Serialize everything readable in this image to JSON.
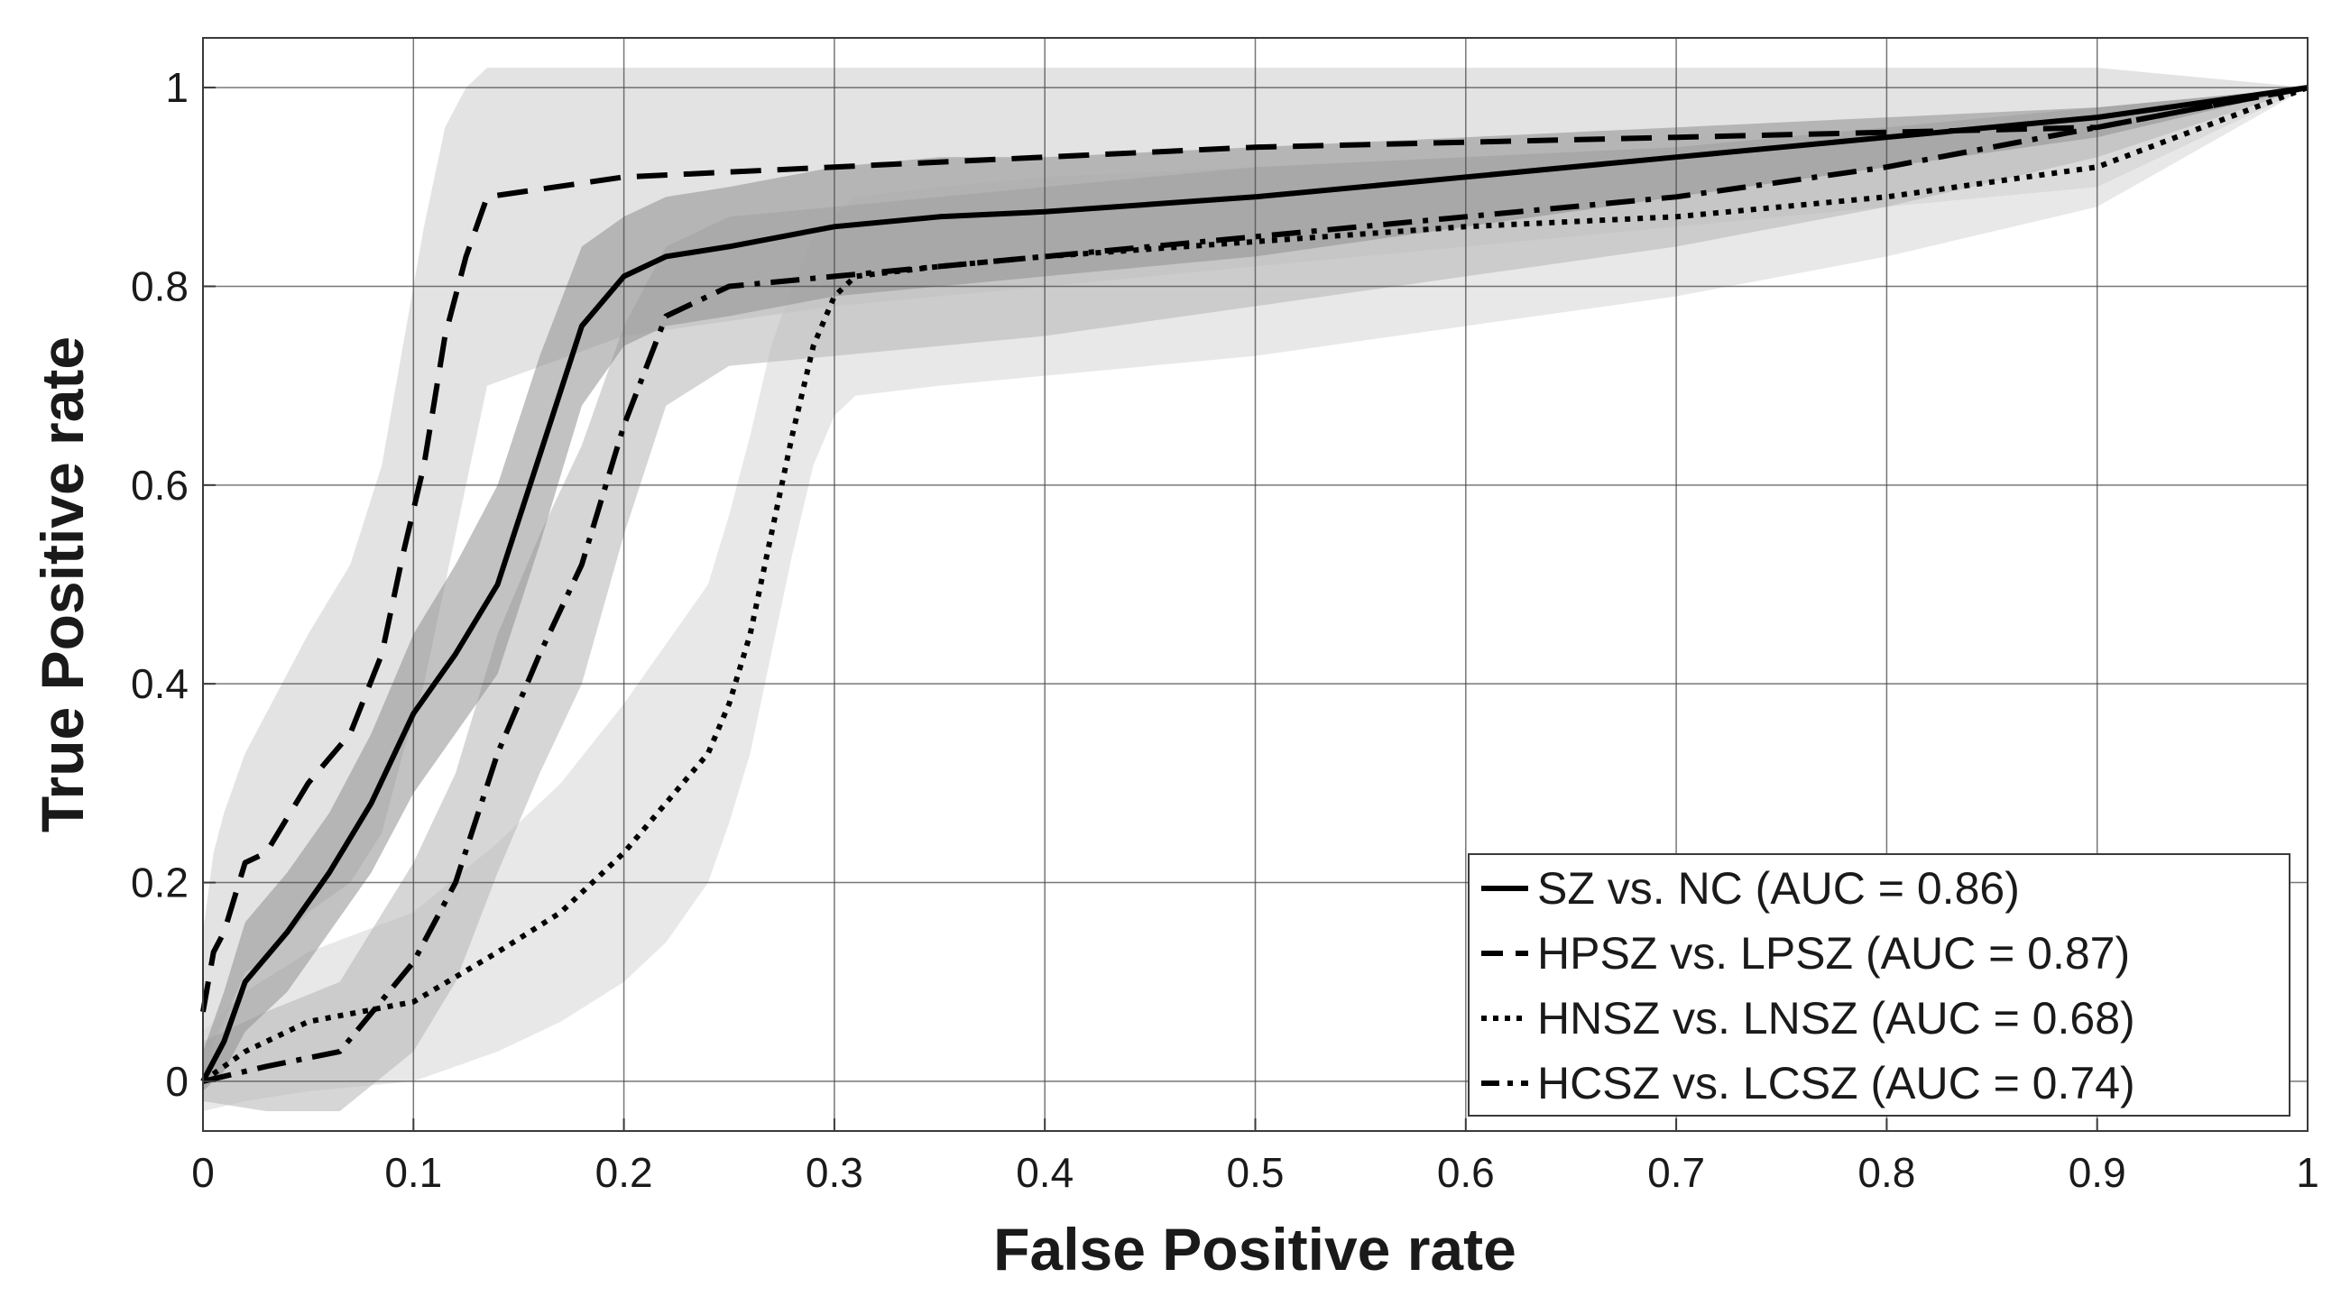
{
  "chart_data": {
    "type": "line",
    "xlabel": "False Positive rate",
    "ylabel": "True Positive rate",
    "xlim": [
      0,
      1
    ],
    "ylim": [
      -0.05,
      1.05
    ],
    "x_ticks": [
      0,
      0.1,
      0.2,
      0.3,
      0.4,
      0.5,
      0.6,
      0.7,
      0.8,
      0.9,
      1
    ],
    "x_tick_labels": [
      "0",
      "0.1",
      "0.2",
      "0.3",
      "0.4",
      "0.5",
      "0.6",
      "0.7",
      "0.8",
      "0.9",
      "1"
    ],
    "y_ticks": [
      0,
      0.2,
      0.4,
      0.6,
      0.8,
      1
    ],
    "y_tick_labels": [
      "0",
      "0.2",
      "0.4",
      "0.6",
      "0.8",
      "1"
    ],
    "grid": true,
    "legend_position": "bottom-right",
    "series": [
      {
        "name": "SZ vs. NC (AUC = 0.86)",
        "style": "solid",
        "color": "#000000",
        "x": [
          0,
          0.01,
          0.02,
          0.04,
          0.06,
          0.08,
          0.1,
          0.12,
          0.14,
          0.16,
          0.18,
          0.2,
          0.22,
          0.25,
          0.3,
          0.35,
          0.4,
          0.5,
          0.6,
          0.7,
          0.8,
          0.9,
          1.0
        ],
        "y": [
          0,
          0.04,
          0.1,
          0.15,
          0.21,
          0.28,
          0.37,
          0.43,
          0.5,
          0.63,
          0.76,
          0.81,
          0.83,
          0.84,
          0.86,
          0.87,
          0.875,
          0.89,
          0.91,
          0.93,
          0.95,
          0.97,
          1.0
        ],
        "band": {
          "color": "#8f8f8f",
          "upper": [
            0.03,
            0.09,
            0.16,
            0.21,
            0.27,
            0.35,
            0.45,
            0.52,
            0.6,
            0.73,
            0.84,
            0.87,
            0.89,
            0.9,
            0.92,
            0.93,
            0.93,
            0.94,
            0.95,
            0.96,
            0.97,
            0.98,
            1.0
          ],
          "lower": [
            -0.01,
            0.01,
            0.05,
            0.09,
            0.15,
            0.21,
            0.29,
            0.35,
            0.41,
            0.54,
            0.68,
            0.74,
            0.76,
            0.77,
            0.79,
            0.8,
            0.81,
            0.83,
            0.86,
            0.89,
            0.92,
            0.95,
            1.0
          ]
        }
      },
      {
        "name": "HPSZ vs. LPSZ (AUC = 0.87)",
        "style": "dashed",
        "color": "#000000",
        "x": [
          0,
          0.005,
          0.01,
          0.02,
          0.03,
          0.05,
          0.07,
          0.085,
          0.095,
          0.105,
          0.115,
          0.125,
          0.135,
          0.2,
          0.3,
          0.4,
          0.5,
          0.6,
          0.7,
          0.8,
          0.9,
          1.0
        ],
        "y": [
          0.07,
          0.13,
          0.15,
          0.22,
          0.23,
          0.3,
          0.35,
          0.43,
          0.53,
          0.62,
          0.75,
          0.83,
          0.89,
          0.91,
          0.92,
          0.93,
          0.94,
          0.945,
          0.95,
          0.955,
          0.96,
          1.0
        ],
        "band": {
          "color": "#cccccc",
          "upper": [
            0.15,
            0.23,
            0.27,
            0.33,
            0.37,
            0.45,
            0.52,
            0.62,
            0.74,
            0.86,
            0.96,
            1.0,
            1.02,
            1.02,
            1.02,
            1.02,
            1.02,
            1.02,
            1.02,
            1.02,
            1.02,
            1.0
          ],
          "lower": [
            -0.01,
            0.04,
            0.06,
            0.11,
            0.12,
            0.17,
            0.2,
            0.25,
            0.33,
            0.4,
            0.5,
            0.6,
            0.7,
            0.75,
            0.78,
            0.8,
            0.82,
            0.84,
            0.86,
            0.88,
            0.9,
            1.0
          ]
        }
      },
      {
        "name": "HNSZ vs. LNSZ (AUC = 0.68)",
        "style": "dotted",
        "color": "#000000",
        "x": [
          0,
          0.02,
          0.05,
          0.1,
          0.14,
          0.17,
          0.2,
          0.22,
          0.24,
          0.25,
          0.26,
          0.27,
          0.28,
          0.29,
          0.3,
          0.31,
          0.35,
          0.4,
          0.5,
          0.6,
          0.7,
          0.8,
          0.9,
          1.0
        ],
        "y": [
          0,
          0.03,
          0.06,
          0.08,
          0.13,
          0.17,
          0.23,
          0.28,
          0.33,
          0.38,
          0.45,
          0.55,
          0.65,
          0.74,
          0.79,
          0.81,
          0.82,
          0.83,
          0.845,
          0.86,
          0.87,
          0.89,
          0.92,
          1.0
        ],
        "band": {
          "color": "#d6d6d6",
          "upper": [
            0.05,
            0.09,
            0.13,
            0.17,
            0.24,
            0.3,
            0.38,
            0.44,
            0.5,
            0.57,
            0.65,
            0.74,
            0.8,
            0.85,
            0.87,
            0.89,
            0.9,
            0.91,
            0.92,
            0.93,
            0.94,
            0.96,
            0.98,
            1.0
          ],
          "lower": [
            -0.03,
            -0.02,
            -0.01,
            0.0,
            0.03,
            0.06,
            0.1,
            0.14,
            0.2,
            0.26,
            0.33,
            0.43,
            0.53,
            0.62,
            0.67,
            0.69,
            0.7,
            0.71,
            0.73,
            0.76,
            0.79,
            0.83,
            0.88,
            1.0
          ]
        }
      },
      {
        "name": "HCSZ vs. LCSZ (AUC = 0.74)",
        "style": "dashdot",
        "color": "#000000",
        "x": [
          0,
          0.03,
          0.065,
          0.1,
          0.12,
          0.14,
          0.16,
          0.18,
          0.2,
          0.22,
          0.25,
          0.3,
          0.35,
          0.4,
          0.5,
          0.6,
          0.7,
          0.8,
          0.9,
          1.0
        ],
        "y": [
          0,
          0.015,
          0.03,
          0.12,
          0.2,
          0.33,
          0.43,
          0.52,
          0.66,
          0.77,
          0.8,
          0.81,
          0.82,
          0.83,
          0.85,
          0.87,
          0.89,
          0.92,
          0.96,
          1.0
        ],
        "band": {
          "color": "#b5b5b5",
          "upper": [
            0.04,
            0.07,
            0.1,
            0.22,
            0.31,
            0.45,
            0.55,
            0.64,
            0.76,
            0.84,
            0.87,
            0.88,
            0.89,
            0.9,
            0.92,
            0.93,
            0.94,
            0.96,
            0.98,
            1.0
          ],
          "lower": [
            -0.02,
            -0.03,
            -0.03,
            0.03,
            0.1,
            0.21,
            0.31,
            0.4,
            0.55,
            0.68,
            0.72,
            0.73,
            0.74,
            0.75,
            0.78,
            0.81,
            0.84,
            0.88,
            0.93,
            1.0
          ]
        }
      }
    ]
  }
}
